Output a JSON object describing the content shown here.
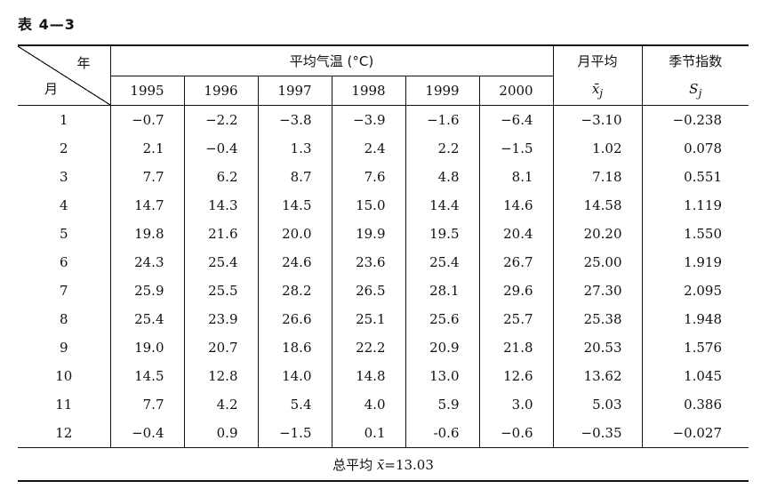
{
  "caption": "表 4—3",
  "header": {
    "corner_top": "年",
    "corner_bottom": "月",
    "group_title": "平均气温 (°C)",
    "monthly_avg_title": "月平均",
    "monthly_avg_symbol": "x̄",
    "monthly_avg_sub": "j",
    "seasonal_index_title": "季节指数",
    "seasonal_index_symbol": "S",
    "seasonal_index_sub": "j",
    "years": [
      "1995",
      "1996",
      "1997",
      "1998",
      "1999",
      "2000"
    ]
  },
  "rows": [
    {
      "month": "1",
      "values": [
        "−0.7",
        "−2.2",
        "−3.8",
        "−3.9",
        "−1.6",
        "−6.4"
      ],
      "avg": "−3.10",
      "index": "−0.238"
    },
    {
      "month": "2",
      "values": [
        "2.1",
        "−0.4",
        "1.3",
        "2.4",
        "2.2",
        "−1.5"
      ],
      "avg": "1.02",
      "index": "0.078"
    },
    {
      "month": "3",
      "values": [
        "7.7",
        "6.2",
        "8.7",
        "7.6",
        "4.8",
        "8.1"
      ],
      "avg": "7.18",
      "index": "0.551"
    },
    {
      "month": "4",
      "values": [
        "14.7",
        "14.3",
        "14.5",
        "15.0",
        "14.4",
        "14.6"
      ],
      "avg": "14.58",
      "index": "1.119"
    },
    {
      "month": "5",
      "values": [
        "19.8",
        "21.6",
        "20.0",
        "19.9",
        "19.5",
        "20.4"
      ],
      "avg": "20.20",
      "index": "1.550"
    },
    {
      "month": "6",
      "values": [
        "24.3",
        "25.4",
        "24.6",
        "23.6",
        "25.4",
        "26.7"
      ],
      "avg": "25.00",
      "index": "1.919"
    },
    {
      "month": "7",
      "values": [
        "25.9",
        "25.5",
        "28.2",
        "26.5",
        "28.1",
        "29.6"
      ],
      "avg": "27.30",
      "index": "2.095"
    },
    {
      "month": "8",
      "values": [
        "25.4",
        "23.9",
        "26.6",
        "25.1",
        "25.6",
        "25.7"
      ],
      "avg": "25.38",
      "index": "1.948"
    },
    {
      "month": "9",
      "values": [
        "19.0",
        "20.7",
        "18.6",
        "22.2",
        "20.9",
        "21.8"
      ],
      "avg": "20.53",
      "index": "1.576"
    },
    {
      "month": "10",
      "values": [
        "14.5",
        "12.8",
        "14.0",
        "14.8",
        "13.0",
        "12.6"
      ],
      "avg": "13.62",
      "index": "1.045"
    },
    {
      "month": "11",
      "values": [
        "7.7",
        "4.2",
        "5.4",
        "4.0",
        "5.9",
        "3.0"
      ],
      "avg": "5.03",
      "index": "0.386"
    },
    {
      "month": "12",
      "values": [
        "−0.4",
        "0.9",
        "−1.5",
        "0.1",
        "-0.6",
        "−0.6"
      ],
      "avg": "−0.35",
      "index": "−0.027"
    }
  ],
  "footer": {
    "label": "总平均",
    "symbol": "x̄",
    "value_text": "=13.03"
  }
}
